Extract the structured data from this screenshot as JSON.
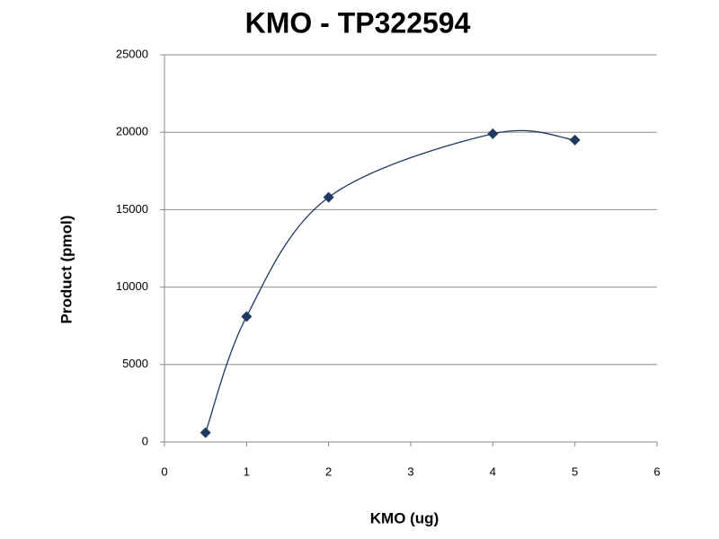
{
  "chart_data": {
    "type": "scatter",
    "title": "KMO - TP322594",
    "x_label": "KMO (ug)",
    "y_label": "Product (pmol)",
    "series": [
      {
        "name": "KMO",
        "color": "#1f3a60",
        "smooth": true,
        "x": [
          0.5,
          1,
          2,
          4,
          5
        ],
        "values": [
          600,
          8100,
          15800,
          19900,
          19500
        ]
      }
    ],
    "xlim": [
      0,
      6
    ],
    "xticks": [
      0,
      1,
      2,
      3,
      4,
      5,
      6
    ],
    "ylim": [
      0,
      25000
    ],
    "yticks": [
      0,
      5000,
      10000,
      15000,
      20000,
      25000
    ],
    "grid": true
  }
}
